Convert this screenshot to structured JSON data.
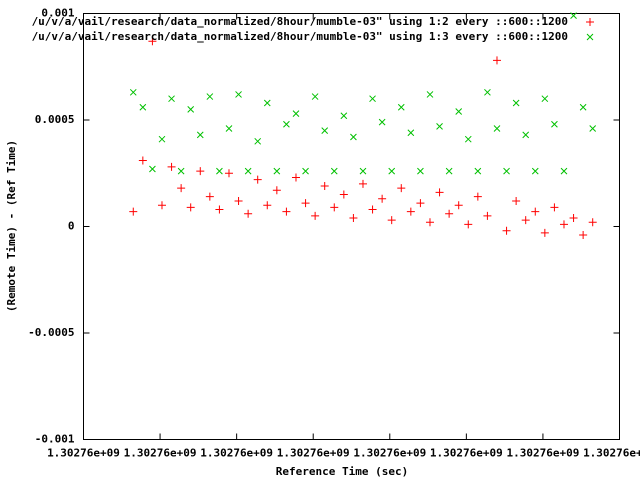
{
  "chart_data": {
    "type": "scatter",
    "xlabel": "Reference Time (sec)",
    "ylabel": "(Remote Time) - (Ref Time)",
    "x": [
      1302761300,
      1302761550,
      1302761800,
      1302762050,
      1302762300,
      1302762550,
      1302762800,
      1302763050,
      1302763300,
      1302763550,
      1302763800,
      1302764050,
      1302764300,
      1302764550,
      1302764800,
      1302765050,
      1302765300,
      1302765550,
      1302765800,
      1302766050,
      1302766300,
      1302766550,
      1302766800,
      1302767050,
      1302767300,
      1302767550,
      1302767800,
      1302768050,
      1302768300,
      1302768550,
      1302768800,
      1302769050,
      1302769300,
      1302769550,
      1302769800,
      1302770050,
      1302770300,
      1302770550,
      1302770800,
      1302771050,
      1302771300,
      1302771550,
      1302771800,
      1302772050,
      1302772300,
      1302772550,
      1302772800,
      1302773050,
      1302773300
    ],
    "series": [
      {
        "name": "/u/v/a/vail/research/data_normalized/8hour/mumble-03\" using 1:2 every ::600::1200",
        "color": "#ff0000",
        "marker": "plus",
        "values": [
          7e-05,
          0.00031,
          0.00087,
          0.0001,
          0.00028,
          0.00018,
          9e-05,
          0.00026,
          0.00014,
          8e-05,
          0.00025,
          0.00012,
          6e-05,
          0.00022,
          0.0001,
          0.00017,
          7e-05,
          0.00023,
          0.00011,
          5e-05,
          0.00019,
          9e-05,
          0.00015,
          4e-05,
          0.0002,
          8e-05,
          0.00013,
          3e-05,
          0.00018,
          7e-05,
          0.00011,
          2e-05,
          0.00016,
          6e-05,
          0.0001,
          1e-05,
          0.00014,
          5e-05,
          0.00078,
          -2e-05,
          0.00012,
          3e-05,
          7e-05,
          -3e-05,
          9e-05,
          1e-05,
          4e-05,
          -4e-05,
          2e-05
        ]
      },
      {
        "name": "/u/v/a/vail/research/data_normalized/8hour/mumble-03\" using 1:3 every ::600::1200",
        "color": "#00c000",
        "marker": "cross",
        "values": [
          0.00063,
          0.00056,
          0.00027,
          0.00041,
          0.0006,
          0.00026,
          0.00055,
          0.00043,
          0.00061,
          0.00026,
          0.00046,
          0.00062,
          0.00026,
          0.0004,
          0.00058,
          0.00026,
          0.00048,
          0.00053,
          0.00026,
          0.00061,
          0.00045,
          0.00026,
          0.00052,
          0.00042,
          0.00026,
          0.0006,
          0.00049,
          0.00026,
          0.00056,
          0.00044,
          0.00026,
          0.00062,
          0.00047,
          0.00026,
          0.00054,
          0.00041,
          0.00026,
          0.00063,
          0.00046,
          0.00026,
          0.00058,
          0.00043,
          0.00026,
          0.0006,
          0.00048,
          0.00026,
          0.00099,
          0.00056,
          0.00046
        ]
      }
    ],
    "xlim": [
      1302760000,
      1302774000
    ],
    "xticks": [
      {
        "value": 1302760000,
        "label": "1.30276e+09"
      },
      {
        "value": 1302762000,
        "label": "1.30276e+09"
      },
      {
        "value": 1302764000,
        "label": "1.30276e+09"
      },
      {
        "value": 1302766000,
        "label": "1.30276e+09"
      },
      {
        "value": 1302768000,
        "label": "1.30276e+09"
      },
      {
        "value": 1302770000,
        "label": "1.30276e+09"
      },
      {
        "value": 1302772000,
        "label": "1.30276e+09"
      },
      {
        "value": 1302774000,
        "label": "1.30276e+09"
      }
    ],
    "ylim": [
      -0.001,
      0.001
    ],
    "yticks": [
      -0.001,
      -0.0005,
      0,
      0.0005,
      0.001
    ],
    "grid": false,
    "legend": "top-right"
  }
}
